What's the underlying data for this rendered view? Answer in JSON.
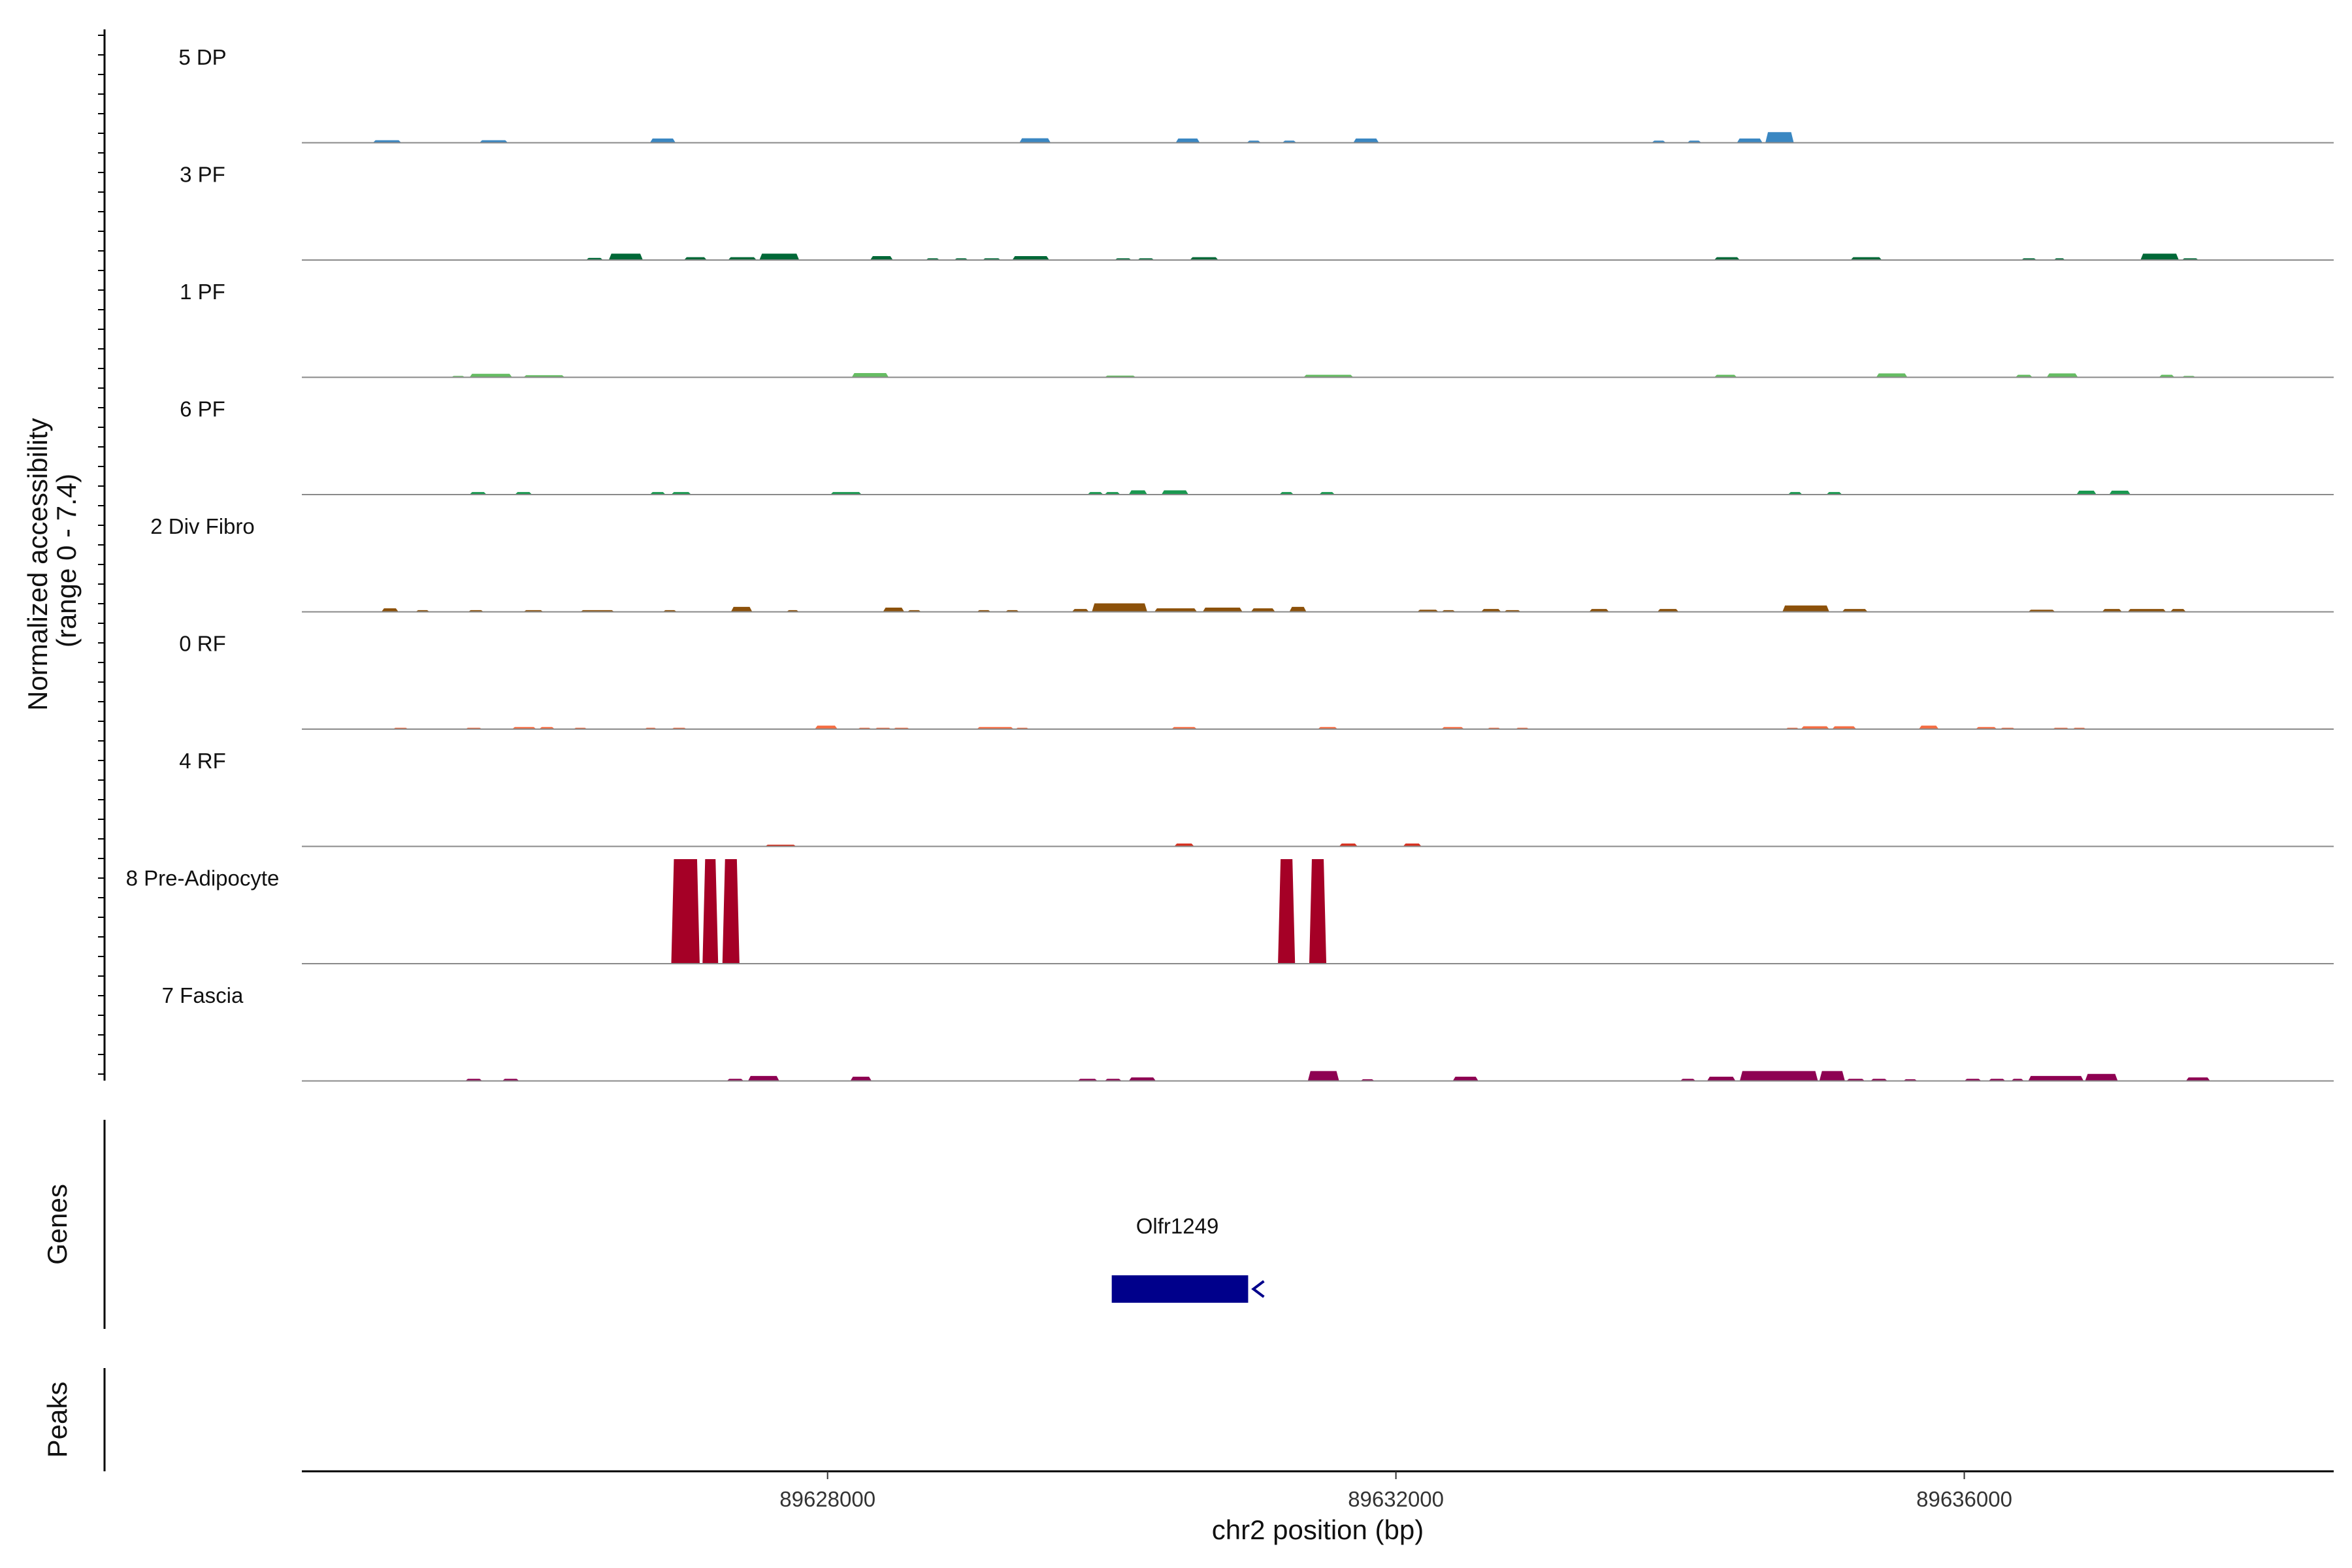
{
  "chart_data": {
    "type": "coverage",
    "ylabel_line1": "Normalized accessibility",
    "ylabel_line2": "(range 0 - 7.4)",
    "xlabel": "chr2 position (bp)",
    "xlim": [
      89624300,
      89638600
    ],
    "x_ticks": [
      89628000,
      89632000,
      89636000
    ],
    "x_tick_labels": [
      "89628000",
      "89632000",
      "89636000"
    ],
    "y_range": [
      0,
      7.4
    ],
    "tracks": [
      {
        "name": "5 DP",
        "color": "#3a87c2",
        "regions": [
          {
            "start": 89624800,
            "end": 89625000,
            "height": 0.18
          },
          {
            "start": 89625550,
            "end": 89625750,
            "height": 0.18
          },
          {
            "start": 89626750,
            "end": 89626930,
            "height": 0.3
          },
          {
            "start": 89629350,
            "end": 89629570,
            "height": 0.32
          },
          {
            "start": 89630450,
            "end": 89630620,
            "height": 0.3
          },
          {
            "start": 89630950,
            "end": 89631050,
            "height": 0.15
          },
          {
            "start": 89631200,
            "end": 89631300,
            "height": 0.15
          },
          {
            "start": 89631700,
            "end": 89631880,
            "height": 0.3
          },
          {
            "start": 89633800,
            "end": 89633900,
            "height": 0.15
          },
          {
            "start": 89634050,
            "end": 89634150,
            "height": 0.15
          },
          {
            "start": 89634400,
            "end": 89634580,
            "height": 0.3
          },
          {
            "start": 89634600,
            "end": 89634800,
            "height": 0.75
          }
        ]
      },
      {
        "name": "3 PF",
        "color": "#006837",
        "regions": [
          {
            "start": 89626300,
            "end": 89626420,
            "height": 0.15
          },
          {
            "start": 89626460,
            "end": 89626700,
            "height": 0.45
          },
          {
            "start": 89626990,
            "end": 89627150,
            "height": 0.2
          },
          {
            "start": 89627300,
            "end": 89627500,
            "height": 0.2
          },
          {
            "start": 89627520,
            "end": 89627800,
            "height": 0.45
          },
          {
            "start": 89628300,
            "end": 89628460,
            "height": 0.28
          },
          {
            "start": 89628690,
            "end": 89628790,
            "height": 0.12
          },
          {
            "start": 89628890,
            "end": 89628990,
            "height": 0.12
          },
          {
            "start": 89629090,
            "end": 89629220,
            "height": 0.12
          },
          {
            "start": 89629300,
            "end": 89629560,
            "height": 0.28
          },
          {
            "start": 89630020,
            "end": 89630140,
            "height": 0.12
          },
          {
            "start": 89630180,
            "end": 89630300,
            "height": 0.12
          },
          {
            "start": 89630550,
            "end": 89630750,
            "height": 0.2
          },
          {
            "start": 89634240,
            "end": 89634420,
            "height": 0.2
          },
          {
            "start": 89635200,
            "end": 89635420,
            "height": 0.2
          },
          {
            "start": 89636400,
            "end": 89636510,
            "height": 0.12
          },
          {
            "start": 89636630,
            "end": 89636710,
            "height": 0.12
          },
          {
            "start": 89637240,
            "end": 89637510,
            "height": 0.45
          },
          {
            "start": 89637530,
            "end": 89637650,
            "height": 0.12
          }
        ]
      },
      {
        "name": "1 PF",
        "color": "#66bd63",
        "regions": [
          {
            "start": 89625350,
            "end": 89625450,
            "height": 0.1
          },
          {
            "start": 89625480,
            "end": 89625780,
            "height": 0.25
          },
          {
            "start": 89625860,
            "end": 89626150,
            "height": 0.15
          },
          {
            "start": 89628170,
            "end": 89628430,
            "height": 0.3
          },
          {
            "start": 89629950,
            "end": 89630170,
            "height": 0.12
          },
          {
            "start": 89631350,
            "end": 89631700,
            "height": 0.18
          },
          {
            "start": 89634240,
            "end": 89634400,
            "height": 0.18
          },
          {
            "start": 89635380,
            "end": 89635600,
            "height": 0.28
          },
          {
            "start": 89636360,
            "end": 89636480,
            "height": 0.18
          },
          {
            "start": 89636580,
            "end": 89636800,
            "height": 0.28
          },
          {
            "start": 89637370,
            "end": 89637480,
            "height": 0.18
          },
          {
            "start": 89637530,
            "end": 89637630,
            "height": 0.1
          }
        ]
      },
      {
        "name": "6 PF",
        "color": "#1a9850",
        "regions": [
          {
            "start": 89625480,
            "end": 89625600,
            "height": 0.18
          },
          {
            "start": 89625800,
            "end": 89625920,
            "height": 0.18
          },
          {
            "start": 89626750,
            "end": 89626860,
            "height": 0.18
          },
          {
            "start": 89626900,
            "end": 89627040,
            "height": 0.18
          },
          {
            "start": 89628020,
            "end": 89628240,
            "height": 0.18
          },
          {
            "start": 89629830,
            "end": 89629940,
            "height": 0.18
          },
          {
            "start": 89629950,
            "end": 89630060,
            "height": 0.18
          },
          {
            "start": 89630120,
            "end": 89630250,
            "height": 0.3
          },
          {
            "start": 89630350,
            "end": 89630540,
            "height": 0.3
          },
          {
            "start": 89631180,
            "end": 89631280,
            "height": 0.18
          },
          {
            "start": 89631460,
            "end": 89631570,
            "height": 0.18
          },
          {
            "start": 89634760,
            "end": 89634860,
            "height": 0.18
          },
          {
            "start": 89635030,
            "end": 89635140,
            "height": 0.18
          },
          {
            "start": 89636790,
            "end": 89636930,
            "height": 0.28
          },
          {
            "start": 89637020,
            "end": 89637170,
            "height": 0.28
          }
        ]
      },
      {
        "name": "2 Div Fibro",
        "color": "#8c510a",
        "regions": [
          {
            "start": 89624860,
            "end": 89624980,
            "height": 0.25
          },
          {
            "start": 89625100,
            "end": 89625200,
            "height": 0.12
          },
          {
            "start": 89625470,
            "end": 89625580,
            "height": 0.12
          },
          {
            "start": 89625860,
            "end": 89626000,
            "height": 0.12
          },
          {
            "start": 89626260,
            "end": 89626500,
            "height": 0.12
          },
          {
            "start": 89626840,
            "end": 89626940,
            "height": 0.12
          },
          {
            "start": 89627320,
            "end": 89627470,
            "height": 0.35
          },
          {
            "start": 89627710,
            "end": 89627800,
            "height": 0.12
          },
          {
            "start": 89628390,
            "end": 89628540,
            "height": 0.3
          },
          {
            "start": 89628560,
            "end": 89628660,
            "height": 0.12
          },
          {
            "start": 89629050,
            "end": 89629150,
            "height": 0.12
          },
          {
            "start": 89629250,
            "end": 89629350,
            "height": 0.12
          },
          {
            "start": 89629720,
            "end": 89629840,
            "height": 0.2
          },
          {
            "start": 89629860,
            "end": 89630250,
            "height": 0.6
          },
          {
            "start": 89630300,
            "end": 89630600,
            "height": 0.25
          },
          {
            "start": 89630640,
            "end": 89630920,
            "height": 0.3
          },
          {
            "start": 89630980,
            "end": 89631150,
            "height": 0.25
          },
          {
            "start": 89631250,
            "end": 89631370,
            "height": 0.35
          },
          {
            "start": 89632150,
            "end": 89632300,
            "height": 0.15
          },
          {
            "start": 89632320,
            "end": 89632420,
            "height": 0.12
          },
          {
            "start": 89632600,
            "end": 89632740,
            "height": 0.2
          },
          {
            "start": 89632760,
            "end": 89632880,
            "height": 0.12
          },
          {
            "start": 89633360,
            "end": 89633500,
            "height": 0.2
          },
          {
            "start": 89633840,
            "end": 89633990,
            "height": 0.2
          },
          {
            "start": 89634720,
            "end": 89635050,
            "height": 0.45
          },
          {
            "start": 89635140,
            "end": 89635320,
            "height": 0.2
          },
          {
            "start": 89636450,
            "end": 89636640,
            "height": 0.15
          },
          {
            "start": 89636970,
            "end": 89637110,
            "height": 0.2
          },
          {
            "start": 89637150,
            "end": 89637420,
            "height": 0.2
          },
          {
            "start": 89637450,
            "end": 89637560,
            "height": 0.2
          }
        ]
      },
      {
        "name": "0 RF",
        "color": "#f46d43",
        "regions": [
          {
            "start": 89624940,
            "end": 89625050,
            "height": 0.1
          },
          {
            "start": 89625450,
            "end": 89625570,
            "height": 0.1
          },
          {
            "start": 89625780,
            "end": 89625950,
            "height": 0.15
          },
          {
            "start": 89625970,
            "end": 89626080,
            "height": 0.15
          },
          {
            "start": 89626210,
            "end": 89626310,
            "height": 0.1
          },
          {
            "start": 89626710,
            "end": 89626800,
            "height": 0.1
          },
          {
            "start": 89626900,
            "end": 89627010,
            "height": 0.1
          },
          {
            "start": 89627910,
            "end": 89628070,
            "height": 0.25
          },
          {
            "start": 89628210,
            "end": 89628310,
            "height": 0.1
          },
          {
            "start": 89628330,
            "end": 89628450,
            "height": 0.1
          },
          {
            "start": 89628460,
            "end": 89628580,
            "height": 0.1
          },
          {
            "start": 89629050,
            "end": 89629310,
            "height": 0.15
          },
          {
            "start": 89629320,
            "end": 89629420,
            "height": 0.1
          },
          {
            "start": 89630420,
            "end": 89630600,
            "height": 0.15
          },
          {
            "start": 89631450,
            "end": 89631590,
            "height": 0.15
          },
          {
            "start": 89632320,
            "end": 89632480,
            "height": 0.15
          },
          {
            "start": 89632640,
            "end": 89632740,
            "height": 0.1
          },
          {
            "start": 89632840,
            "end": 89632940,
            "height": 0.1
          },
          {
            "start": 89634740,
            "end": 89634840,
            "height": 0.1
          },
          {
            "start": 89634850,
            "end": 89635050,
            "height": 0.2
          },
          {
            "start": 89635070,
            "end": 89635240,
            "height": 0.2
          },
          {
            "start": 89635680,
            "end": 89635820,
            "height": 0.25
          },
          {
            "start": 89636080,
            "end": 89636230,
            "height": 0.15
          },
          {
            "start": 89636250,
            "end": 89636360,
            "height": 0.1
          },
          {
            "start": 89636620,
            "end": 89636740,
            "height": 0.1
          },
          {
            "start": 89636760,
            "end": 89636860,
            "height": 0.1
          }
        ]
      },
      {
        "name": "4 RF",
        "color": "#d7301f",
        "regions": [
          {
            "start": 89627560,
            "end": 89627780,
            "height": 0.12
          },
          {
            "start": 89630440,
            "end": 89630580,
            "height": 0.2
          },
          {
            "start": 89631600,
            "end": 89631730,
            "height": 0.2
          },
          {
            "start": 89632050,
            "end": 89632180,
            "height": 0.2
          }
        ]
      },
      {
        "name": "8 Pre-Adipocyte",
        "color": "#a50026",
        "regions": [
          {
            "start": 89626900,
            "end": 89627100,
            "height": 7.4
          },
          {
            "start": 89627120,
            "end": 89627230,
            "height": 7.4
          },
          {
            "start": 89627260,
            "end": 89627380,
            "height": 7.4
          },
          {
            "start": 89631170,
            "end": 89631290,
            "height": 7.4
          },
          {
            "start": 89631390,
            "end": 89631510,
            "height": 7.4
          }
        ]
      },
      {
        "name": "7 Fascia",
        "color": "#8e0152",
        "regions": [
          {
            "start": 89625450,
            "end": 89625570,
            "height": 0.15
          },
          {
            "start": 89625710,
            "end": 89625830,
            "height": 0.15
          },
          {
            "start": 89627290,
            "end": 89627410,
            "height": 0.15
          },
          {
            "start": 89627440,
            "end": 89627660,
            "height": 0.35
          },
          {
            "start": 89628160,
            "end": 89628310,
            "height": 0.3
          },
          {
            "start": 89629760,
            "end": 89629900,
            "height": 0.15
          },
          {
            "start": 89629950,
            "end": 89630070,
            "height": 0.15
          },
          {
            "start": 89630120,
            "end": 89630310,
            "height": 0.25
          },
          {
            "start": 89631380,
            "end": 89631600,
            "height": 0.7
          },
          {
            "start": 89631750,
            "end": 89631850,
            "height": 0.12
          },
          {
            "start": 89632400,
            "end": 89632580,
            "height": 0.3
          },
          {
            "start": 89634000,
            "end": 89634110,
            "height": 0.15
          },
          {
            "start": 89634190,
            "end": 89634390,
            "height": 0.3
          },
          {
            "start": 89634420,
            "end": 89634970,
            "height": 0.7
          },
          {
            "start": 89634980,
            "end": 89635160,
            "height": 0.7
          },
          {
            "start": 89635170,
            "end": 89635300,
            "height": 0.15
          },
          {
            "start": 89635340,
            "end": 89635460,
            "height": 0.15
          },
          {
            "start": 89635570,
            "end": 89635670,
            "height": 0.12
          },
          {
            "start": 89636000,
            "end": 89636120,
            "height": 0.15
          },
          {
            "start": 89636170,
            "end": 89636290,
            "height": 0.15
          },
          {
            "start": 89636330,
            "end": 89636420,
            "height": 0.15
          },
          {
            "start": 89636450,
            "end": 89636840,
            "height": 0.35
          },
          {
            "start": 89636850,
            "end": 89637080,
            "height": 0.5
          },
          {
            "start": 89637560,
            "end": 89637730,
            "height": 0.25
          }
        ]
      }
    ],
    "genes": {
      "title": "Genes",
      "items": [
        {
          "name": "Olfr1249",
          "start": 89630000,
          "end": 89630960,
          "strand": "-"
        }
      ],
      "color": "#00008b"
    },
    "peaks": {
      "title": "Peaks",
      "items": []
    }
  }
}
